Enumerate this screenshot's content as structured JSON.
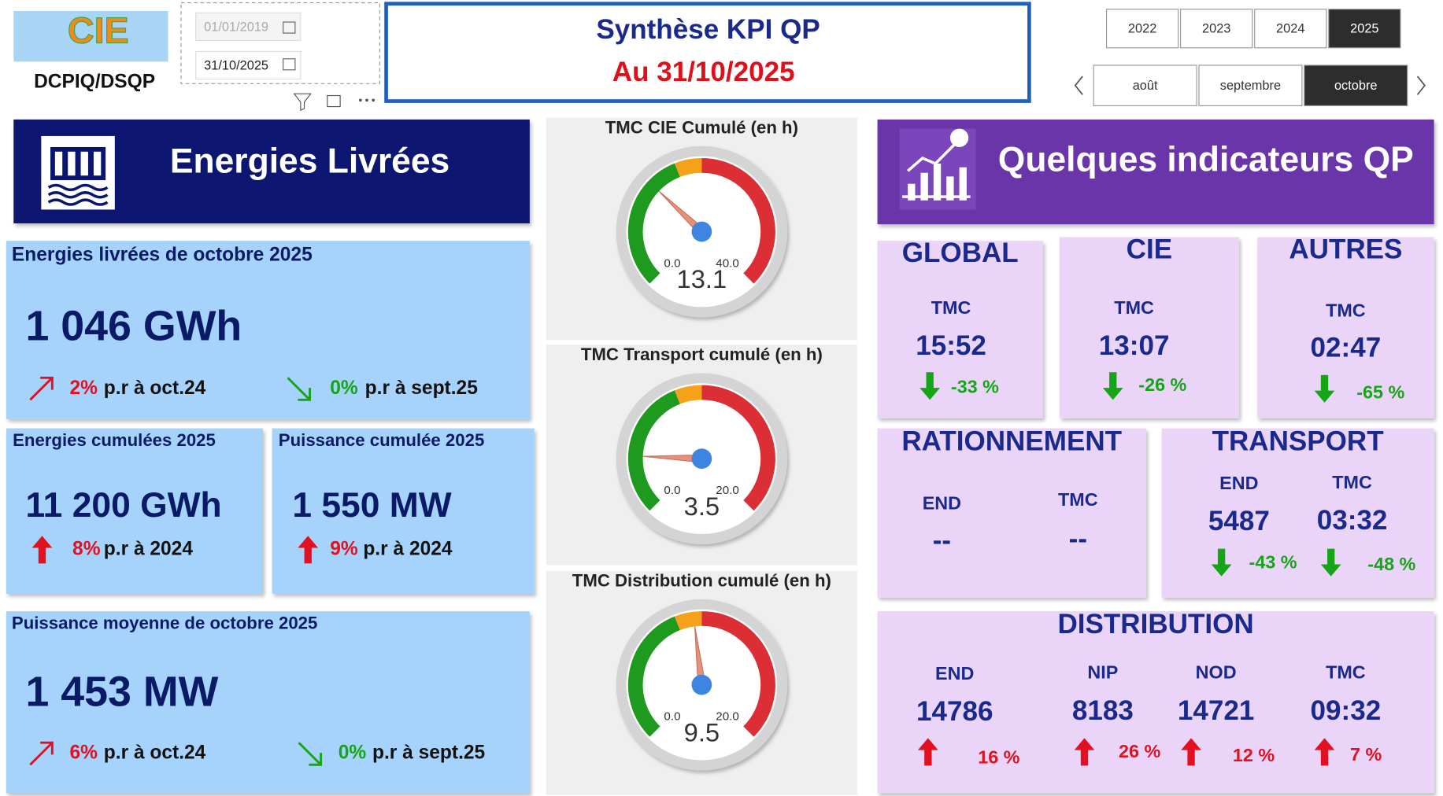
{
  "header": {
    "logo": "CIE",
    "org": "DCPIQ/DSQP",
    "title": "Synthèse KPI QP",
    "subtitle": "Au 31/10/2025"
  },
  "date_filter": {
    "start": "01/01/2019",
    "end": "31/10/2025"
  },
  "year_slicer": {
    "options": [
      "2022",
      "2023",
      "2024",
      "2025"
    ],
    "selected": "2025"
  },
  "month_slicer": {
    "options": [
      "août",
      "septembre",
      "octobre"
    ],
    "selected": "octobre"
  },
  "trend_colors": {
    "up": "#e3101f",
    "down": "#16a516"
  },
  "energies": {
    "banner": "Energies Livrées",
    "cards": [
      {
        "title": "Energies livrées de octobre 2025",
        "value": "1 046 GWh",
        "changes": [
          {
            "style": "diagonal",
            "trend": "up",
            "pct": "2%",
            "text": "p.r à oct.24"
          },
          {
            "style": "diagonal",
            "trend": "down",
            "pct": "0%",
            "text": "p.r à sept.25"
          }
        ]
      },
      {
        "title": "Energies cumulées 2025",
        "value": "11 200 GWh",
        "changes": [
          {
            "style": "block",
            "trend": "up",
            "pct": "8%",
            "text": "p.r à 2024"
          }
        ]
      },
      {
        "title": "Puissance cumulée 2025",
        "value": "1 550 MW",
        "changes": [
          {
            "style": "block",
            "trend": "up",
            "pct": "9%",
            "text": "p.r à 2024"
          }
        ]
      },
      {
        "title": "Puissance moyenne de octobre 2025",
        "value": "1 453 MW",
        "changes": [
          {
            "style": "diagonal",
            "trend": "up",
            "pct": "6%",
            "text": "p.r à oct.24"
          },
          {
            "style": "diagonal",
            "trend": "down",
            "pct": "0%",
            "text": "p.r à sept.25"
          }
        ]
      }
    ]
  },
  "gauges": [
    {
      "title": "TMC CIE Cumulé (en h)",
      "value": 13.1,
      "min": {
        "value": 0,
        "label": "0.0"
      },
      "max": {
        "value": 40,
        "label": "40.0"
      }
    },
    {
      "title": "TMC Transport cumulé (en h)",
      "value": 3.5,
      "min": {
        "value": 0,
        "label": "0.0"
      },
      "max": {
        "value": 20,
        "label": "20.0"
      }
    },
    {
      "title": "TMC Distribution cumulé (en h)",
      "value": 9.5,
      "min": {
        "value": 0,
        "label": "0.0"
      },
      "max": {
        "value": 20,
        "label": "20.0"
      }
    }
  ],
  "indicators": {
    "banner": "Quelques indicateurs QP",
    "panels": [
      {
        "title": "GLOBAL",
        "metrics": [
          {
            "label": "TMC",
            "value": "15:52",
            "trend": "down",
            "change": "-33 %"
          }
        ]
      },
      {
        "title": "CIE",
        "metrics": [
          {
            "label": "TMC",
            "value": "13:07",
            "trend": "down",
            "change": "-26 %"
          }
        ]
      },
      {
        "title": "AUTRES",
        "metrics": [
          {
            "label": "TMC",
            "value": "02:47",
            "trend": "down",
            "change": "-65 %"
          }
        ]
      },
      {
        "title": "RATIONNEMENT",
        "metrics": [
          {
            "label": "END",
            "value": "--"
          },
          {
            "label": "TMC",
            "value": "--"
          }
        ]
      },
      {
        "title": "TRANSPORT",
        "metrics": [
          {
            "label": "END",
            "value": 5487,
            "trend": "down",
            "change": "-43 %"
          },
          {
            "label": "TMC",
            "value": "03:32",
            "trend": "down",
            "change": "-48 %"
          }
        ]
      },
      {
        "title": "DISTRIBUTION",
        "metrics": [
          {
            "label": "END",
            "value": 14786,
            "trend": "up",
            "change": "16 %"
          },
          {
            "label": "NIP",
            "value": 8183,
            "trend": "up",
            "change": "26 %"
          },
          {
            "label": "NOD",
            "value": 14721,
            "trend": "up",
            "change": "12 %"
          },
          {
            "label": "TMC",
            "value": "09:32",
            "trend": "up",
            "change": "7 %"
          }
        ]
      }
    ]
  }
}
